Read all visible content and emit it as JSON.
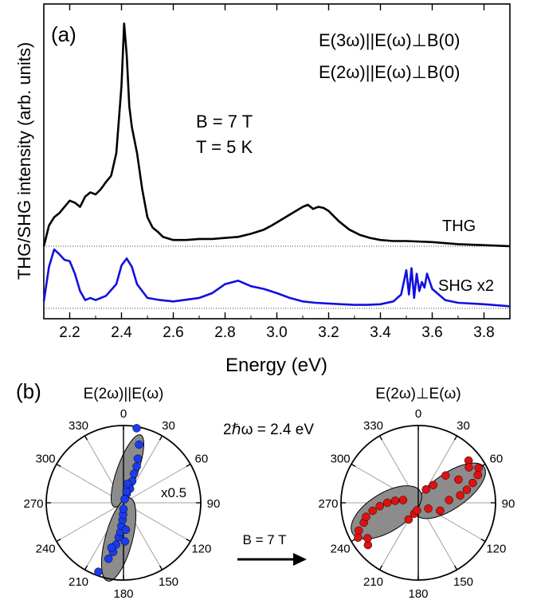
{
  "colors": {
    "thg": "#000000",
    "shg": "#1010e0",
    "panel_b_left_points": "#1a3cf0",
    "panel_b_right_points": "#e01010",
    "ellipse_fill": "#8c8c8c"
  },
  "panel_a": {
    "label": "(a)",
    "legend_line1": "E(3ω)||E(ω)⊥B(0)",
    "legend_line2": "E(2ω)||E(ω)⊥B(0)",
    "cond_b": "B = 7 T",
    "cond_t": "T = 5 K",
    "thg_label": "THG",
    "shg_label": "SHG x2",
    "xlabel": "Energy (eV)",
    "ylabel": "THG/SHG intensity (arb. units)"
  },
  "panel_b": {
    "label": "(b)",
    "left_title": "E(2ω)||E(ω)",
    "right_title": "E(2ω)⊥E(ω)",
    "photon_energy": "2ℏω = 2.4 eV",
    "scale_note": "x0.5",
    "arrow_label": "B = 7 T",
    "angle_labels": [
      "0",
      "30",
      "60",
      "90",
      "120",
      "150",
      "180",
      "210",
      "240",
      "270",
      "300",
      "330"
    ]
  },
  "chart_data": [
    {
      "type": "line",
      "xlim": [
        2.1,
        3.9
      ],
      "x_ticks": [
        "2.2",
        "2.4",
        "2.6",
        "2.8",
        "3.0",
        "3.2",
        "3.4",
        "3.6",
        "3.8"
      ],
      "series": [
        {
          "name": "THG",
          "x": [
            2.1,
            2.12,
            2.14,
            2.16,
            2.18,
            2.2,
            2.22,
            2.24,
            2.26,
            2.28,
            2.3,
            2.32,
            2.34,
            2.36,
            2.38,
            2.4,
            2.41,
            2.42,
            2.43,
            2.44,
            2.46,
            2.48,
            2.5,
            2.52,
            2.54,
            2.56,
            2.6,
            2.65,
            2.7,
            2.75,
            2.8,
            2.85,
            2.9,
            2.95,
            2.98,
            3.02,
            3.06,
            3.1,
            3.12,
            3.14,
            3.16,
            3.18,
            3.2,
            3.24,
            3.28,
            3.32,
            3.36,
            3.4,
            3.45,
            3.5,
            3.6,
            3.7,
            3.8,
            3.9
          ],
          "y": [
            0.0,
            0.2,
            0.28,
            0.32,
            0.38,
            0.44,
            0.42,
            0.38,
            0.48,
            0.52,
            0.5,
            0.55,
            0.62,
            0.68,
            0.9,
            1.55,
            2.15,
            1.85,
            1.35,
            1.15,
            0.9,
            0.55,
            0.28,
            0.18,
            0.14,
            0.09,
            0.06,
            0.06,
            0.07,
            0.07,
            0.08,
            0.09,
            0.12,
            0.16,
            0.2,
            0.26,
            0.32,
            0.38,
            0.4,
            0.36,
            0.38,
            0.37,
            0.34,
            0.24,
            0.16,
            0.11,
            0.08,
            0.06,
            0.05,
            0.05,
            0.04,
            0.02,
            0.01,
            0.0
          ]
        },
        {
          "name": "SHG x2",
          "x": [
            2.1,
            2.12,
            2.14,
            2.16,
            2.18,
            2.2,
            2.22,
            2.24,
            2.26,
            2.28,
            2.3,
            2.34,
            2.38,
            2.4,
            2.42,
            2.44,
            2.46,
            2.5,
            2.55,
            2.6,
            2.7,
            2.75,
            2.8,
            2.85,
            2.9,
            2.95,
            3.0,
            3.05,
            3.1,
            3.15,
            3.2,
            3.25,
            3.3,
            3.35,
            3.4,
            3.45,
            3.48,
            3.5,
            3.51,
            3.52,
            3.53,
            3.54,
            3.55,
            3.56,
            3.57,
            3.58,
            3.6,
            3.65,
            3.7,
            3.8,
            3.9
          ],
          "y": [
            0.1,
            0.6,
            0.85,
            0.78,
            0.7,
            0.68,
            0.5,
            0.25,
            0.12,
            0.15,
            0.12,
            0.18,
            0.35,
            0.62,
            0.72,
            0.6,
            0.35,
            0.15,
            0.12,
            0.1,
            0.15,
            0.22,
            0.35,
            0.4,
            0.32,
            0.28,
            0.22,
            0.15,
            0.1,
            0.08,
            0.07,
            0.06,
            0.05,
            0.05,
            0.06,
            0.1,
            0.2,
            0.55,
            0.2,
            0.58,
            0.15,
            0.5,
            0.25,
            0.38,
            0.3,
            0.5,
            0.28,
            0.12,
            0.08,
            0.06,
            0.03
          ]
        }
      ]
    },
    {
      "type": "scatter",
      "projection": "polar",
      "angle_unit": "deg",
      "series": [
        {
          "name": "E(2ω)||E(ω)",
          "angles": [
            10,
            15,
            18,
            20,
            20,
            22,
            25,
            20,
            18,
            15,
            12,
            200,
            195,
            192,
            190,
            188,
            186,
            185,
            183,
            182,
            180,
            178,
            175,
            195
          ],
          "radii": [
            0.98,
            0.78,
            0.6,
            0.5,
            0.4,
            0.3,
            0.2,
            0.12,
            0.05,
            0.15,
            0.25,
            0.95,
            0.75,
            0.65,
            0.55,
            0.45,
            0.38,
            0.3,
            0.22,
            0.15,
            0.08,
            0.5,
            0.35,
            0.6
          ]
        },
        {
          "name": "E(2ω)⊥E(ω)",
          "angles": [
            50,
            55,
            60,
            65,
            70,
            75,
            80,
            85,
            60,
            45,
            40,
            30,
            110,
            120,
            230,
            235,
            240,
            245,
            250,
            255,
            260,
            265,
            270,
            275,
            280,
            210,
            200,
            190
          ],
          "radii": [
            0.85,
            0.8,
            0.9,
            0.85,
            0.75,
            0.65,
            0.55,
            0.4,
            0.6,
            0.5,
            0.3,
            0.2,
            0.3,
            0.15,
            0.85,
            0.8,
            0.9,
            0.85,
            0.75,
            0.7,
            0.6,
            0.5,
            0.4,
            0.3,
            0.2,
            0.25,
            0.15,
            0.1
          ]
        }
      ]
    }
  ]
}
